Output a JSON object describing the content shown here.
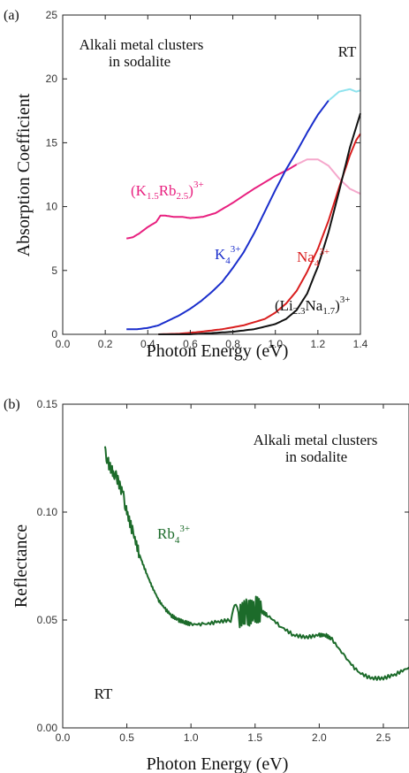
{
  "chart_data": [
    {
      "type": "line",
      "panel_label": "(a)",
      "xlabel": "Photon Energy (eV)",
      "ylabel": "Absorption Coefficient",
      "xlim": [
        0.0,
        1.4
      ],
      "ylim": [
        0,
        25
      ],
      "x_ticks": [
        "0.0",
        "0.2",
        "0.4",
        "0.6",
        "0.8",
        "1.0",
        "1.2",
        "1.4"
      ],
      "y_ticks": [
        "0",
        "5",
        "10",
        "15",
        "20",
        "25"
      ],
      "annotations": {
        "title_line1": "Alkali metal clusters",
        "title_line2": "in sodalite",
        "condition": "RT"
      },
      "series": [
        {
          "name_parts": [
            "(K",
            "1.5",
            "Rb",
            "2.5",
            ")",
            "3+"
          ],
          "color": "#e8207f",
          "x": [
            0.3,
            0.33,
            0.36,
            0.4,
            0.44,
            0.46,
            0.48,
            0.52,
            0.56,
            0.6,
            0.66,
            0.72,
            0.8,
            0.9,
            1.0,
            1.06,
            1.1
          ],
          "y": [
            7.5,
            7.6,
            7.9,
            8.4,
            8.8,
            9.3,
            9.3,
            9.2,
            9.2,
            9.1,
            9.2,
            9.5,
            10.3,
            11.4,
            12.4,
            12.9,
            13.3
          ]
        },
        {
          "name_parts": [
            "(K",
            "1.5",
            "Rb",
            "2.5",
            ")",
            "3+"
          ],
          "color": "#f5a8cc",
          "x": [
            1.1,
            1.15,
            1.2,
            1.25,
            1.3,
            1.35,
            1.4
          ],
          "y": [
            13.3,
            13.7,
            13.7,
            13.2,
            12.2,
            11.4,
            11.0
          ]
        },
        {
          "name_parts": [
            "K",
            "4",
            "3+"
          ],
          "color": "#1a2ecc",
          "x": [
            0.3,
            0.35,
            0.4,
            0.45,
            0.5,
            0.55,
            0.6,
            0.65,
            0.7,
            0.75,
            0.8,
            0.85,
            0.9,
            0.95,
            1.0,
            1.05,
            1.1,
            1.15,
            1.2,
            1.25
          ],
          "y": [
            0.4,
            0.4,
            0.5,
            0.7,
            1.1,
            1.5,
            2.0,
            2.6,
            3.3,
            4.1,
            5.2,
            6.4,
            7.9,
            9.6,
            11.3,
            12.9,
            14.3,
            15.8,
            17.2,
            18.3
          ]
        },
        {
          "name_parts": [
            "K",
            "4",
            "3+"
          ],
          "color": "#8fe3ee",
          "x": [
            1.25,
            1.3,
            1.35,
            1.38,
            1.4
          ],
          "y": [
            18.3,
            19.0,
            19.2,
            19.0,
            19.1
          ]
        },
        {
          "name_parts": [
            "Na",
            "4",
            "3+"
          ],
          "color": "#d91e1e",
          "x": [
            0.45,
            0.55,
            0.65,
            0.75,
            0.85,
            0.95,
            1.0,
            1.05,
            1.1,
            1.15,
            1.2,
            1.25,
            1.3,
            1.35,
            1.38,
            1.4
          ],
          "y": [
            0.0,
            0.05,
            0.2,
            0.4,
            0.7,
            1.2,
            1.7,
            2.4,
            3.4,
            4.9,
            6.7,
            8.9,
            11.5,
            14.0,
            15.2,
            15.7
          ]
        },
        {
          "name_parts": [
            "(Li",
            "2.3",
            "Na",
            "1.7",
            ")",
            "3+"
          ],
          "color": "#111111",
          "x": [
            0.45,
            0.6,
            0.7,
            0.8,
            0.9,
            1.0,
            1.05,
            1.1,
            1.15,
            1.2,
            1.25,
            1.3,
            1.35,
            1.4
          ],
          "y": [
            0.0,
            0.0,
            0.1,
            0.2,
            0.4,
            0.8,
            1.2,
            1.9,
            3.2,
            5.3,
            8.0,
            11.2,
            14.6,
            17.3
          ]
        }
      ]
    },
    {
      "type": "line",
      "panel_label": "(b)",
      "xlabel": "Photon Energy (eV)",
      "ylabel": "Reflectance",
      "xlim": [
        0.0,
        2.7
      ],
      "ylim": [
        0.0,
        0.15
      ],
      "x_ticks": [
        "0.0",
        "0.5",
        "1.0",
        "1.5",
        "2.0",
        "2.5"
      ],
      "y_ticks": [
        "0.00",
        "0.05",
        "0.10",
        "0.15"
      ],
      "annotations": {
        "title_line1": "Alkali metal clusters",
        "title_line2": "in sodalite",
        "condition": "RT"
      },
      "series": [
        {
          "name_parts": [
            "Rb",
            "4",
            "3+"
          ],
          "color": "#1c6b2a",
          "x": [
            0.33,
            0.36,
            0.4,
            0.43,
            0.47,
            0.5,
            0.55,
            0.6,
            0.65,
            0.7,
            0.75,
            0.8,
            0.85,
            0.9,
            0.95,
            1.0,
            1.1,
            1.2,
            1.3,
            1.38,
            1.42,
            1.45,
            1.5,
            1.55,
            1.6,
            1.7,
            1.8,
            1.9,
            2.0,
            2.05,
            2.1,
            2.2,
            2.3,
            2.4,
            2.5,
            2.6,
            2.7
          ],
          "y": [
            0.128,
            0.122,
            0.118,
            0.115,
            0.108,
            0.1,
            0.09,
            0.08,
            0.072,
            0.065,
            0.059,
            0.055,
            0.052,
            0.05,
            0.049,
            0.048,
            0.048,
            0.049,
            0.05,
            0.052,
            0.054,
            0.053,
            0.055,
            0.054,
            0.052,
            0.047,
            0.043,
            0.042,
            0.043,
            0.043,
            0.041,
            0.033,
            0.026,
            0.023,
            0.023,
            0.025,
            0.028
          ]
        }
      ]
    }
  ]
}
